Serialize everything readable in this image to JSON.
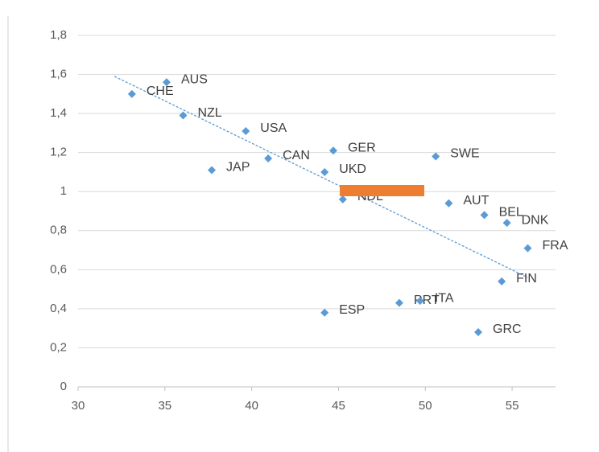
{
  "chart_data": {
    "type": "scatter",
    "x": [
      33.1,
      35.1,
      36.05,
      39.66,
      37.7,
      40.95,
      44.7,
      44.2,
      45.25,
      50.6,
      51.35,
      53.4,
      54.7,
      55.9,
      54.4,
      44.2,
      48.5,
      49.7,
      53.05
    ],
    "y": [
      1.5,
      1.56,
      1.39,
      1.31,
      1.11,
      1.17,
      1.21,
      1.1,
      0.96,
      1.18,
      0.94,
      0.88,
      0.84,
      0.71,
      0.54,
      0.38,
      0.43,
      0.44,
      0.28
    ],
    "labels": [
      "CHE",
      "AUS",
      "NZL",
      "USA",
      "JAP",
      "CAN",
      "GER",
      "UKD",
      "NDL",
      "SWE",
      "AUT",
      "BEL",
      "DNK",
      "FRA",
      "FIN",
      "ESP",
      "PRT",
      "ITA",
      "GRC"
    ],
    "color": "#5b9bd5",
    "trendline": {
      "x": [
        32.1,
        55.9
      ],
      "y": [
        1.59,
        0.56
      ],
      "color": "#5b9bd5"
    },
    "xlim": [
      30,
      57.5
    ],
    "ylim": [
      0,
      1.8
    ],
    "xticks": [
      30,
      35,
      40,
      45,
      50,
      55
    ],
    "yticks": [
      0,
      {
        "value": 0.2,
        "label": "0,2"
      },
      {
        "value": 0.4,
        "label": "0,4"
      },
      {
        "value": 0.6,
        "label": "0,6"
      },
      {
        "value": 0.8,
        "label": "0,8"
      },
      1,
      {
        "value": 1.2,
        "label": "1,2"
      },
      {
        "value": 1.4,
        "label": "1,4"
      },
      {
        "value": 1.6,
        "label": "1,6"
      },
      {
        "value": 1.8,
        "label": "1,8"
      }
    ],
    "grid": true
  }
}
